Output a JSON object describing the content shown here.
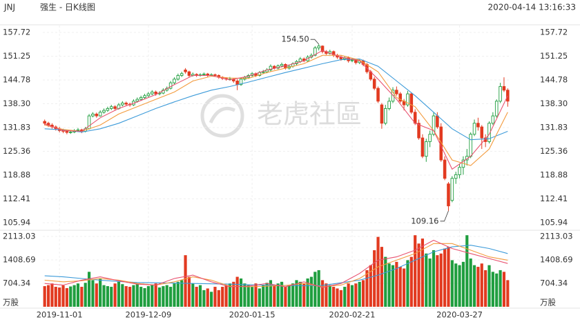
{
  "header": {
    "symbol": "JNJ",
    "title": "强生 - 日K线图",
    "timestamp": "2020-04-14 13:16:33"
  },
  "watermark": "老虎社區",
  "chart_data": {
    "type": "candlestick",
    "categories": [
      null,
      null,
      null,
      null,
      "2019-11-01",
      null,
      null,
      null,
      null,
      null,
      null,
      null,
      null,
      null,
      null,
      null,
      null,
      null,
      null,
      null,
      null,
      null,
      null,
      null,
      null,
      null,
      null,
      null,
      "2019-12-09",
      null,
      null,
      null,
      null,
      null,
      null,
      null,
      null,
      null,
      null,
      null,
      null,
      null,
      null,
      null,
      null,
      null,
      null,
      null,
      null,
      null,
      null,
      null,
      null,
      null,
      null,
      null,
      "2020-01-15",
      null,
      null,
      null,
      null,
      null,
      null,
      null,
      null,
      null,
      null,
      null,
      null,
      null,
      null,
      null,
      null,
      null,
      null,
      null,
      null,
      null,
      null,
      null,
      null,
      null,
      null,
      "2020-02-21",
      null,
      null,
      null,
      null,
      null,
      null,
      null,
      null,
      null,
      null,
      null,
      null,
      null,
      null,
      null,
      null,
      null,
      null,
      null,
      null,
      null,
      null,
      null,
      null,
      null,
      null,
      null,
      null,
      "2020-03-27",
      null,
      null,
      null,
      null,
      null,
      null,
      null,
      null,
      null,
      null,
      null,
      null,
      null
    ],
    "ohlc": [
      [
        133.5,
        134,
        132.4,
        133
      ],
      [
        133,
        133.4,
        132,
        132.5
      ],
      [
        132.5,
        133,
        131.5,
        132
      ],
      [
        132,
        132.4,
        131,
        131.5
      ],
      [
        131.5,
        132,
        130.5,
        131
      ],
      [
        131,
        131.5,
        130.3,
        130.8
      ],
      [
        130.8,
        131.2,
        130,
        130.5
      ],
      [
        130.5,
        131.1,
        130.1,
        130.6
      ],
      [
        130.6,
        131.4,
        130.3,
        131
      ],
      [
        131,
        131.7,
        130.6,
        131.2
      ],
      [
        131.2,
        131.5,
        130.3,
        130.8
      ],
      [
        130.8,
        132,
        130.5,
        131.5
      ],
      [
        131.5,
        135.5,
        131.3,
        135
      ],
      [
        135,
        136,
        134.6,
        135.5
      ],
      [
        135.5,
        135.9,
        134.5,
        135
      ],
      [
        135,
        136.5,
        134.8,
        136
      ],
      [
        136,
        137,
        135.6,
        136.5
      ],
      [
        136.5,
        137.5,
        136.1,
        137
      ],
      [
        137,
        138,
        136.6,
        137.5
      ],
      [
        137.5,
        137.9,
        136.5,
        137
      ],
      [
        137,
        138.5,
        136.7,
        138
      ],
      [
        138,
        139,
        137.6,
        138.5
      ],
      [
        138.5,
        138.9,
        137.8,
        138.2
      ],
      [
        138.2,
        138.6,
        137.5,
        138
      ],
      [
        138,
        139.5,
        137.7,
        139
      ],
      [
        139,
        140,
        138.6,
        139.5
      ],
      [
        139.5,
        140.5,
        139.1,
        140
      ],
      [
        140,
        141,
        139.6,
        140.5
      ],
      [
        140.5,
        141.5,
        140.1,
        141
      ],
      [
        141,
        142,
        140.6,
        141.5
      ],
      [
        141.5,
        141.9,
        140.5,
        141
      ],
      [
        141,
        141.7,
        140.6,
        141.2
      ],
      [
        141.2,
        142.5,
        140.9,
        142
      ],
      [
        142,
        143,
        141.6,
        142.5
      ],
      [
        142.5,
        144.5,
        142.2,
        144
      ],
      [
        144,
        145.5,
        143.6,
        145
      ],
      [
        145,
        146.5,
        144.6,
        146
      ],
      [
        146,
        147,
        145.6,
        146.5
      ],
      [
        147.5,
        148,
        146.5,
        147
      ],
      [
        147,
        147.3,
        145.5,
        146
      ],
      [
        146,
        146.8,
        145.7,
        146.3
      ],
      [
        146.3,
        146.6,
        145.6,
        146
      ],
      [
        146,
        146.6,
        145.7,
        146.2
      ],
      [
        146.2,
        146.8,
        145.9,
        146.4
      ],
      [
        146.4,
        146.7,
        145.6,
        146
      ],
      [
        146,
        146.6,
        145.7,
        146.2
      ],
      [
        146.2,
        146.5,
        145.6,
        146
      ],
      [
        146,
        146.3,
        145.1,
        145.5
      ],
      [
        145.5,
        145.8,
        144.8,
        145.2
      ],
      [
        145.2,
        145.5,
        144.6,
        145
      ],
      [
        145,
        145.6,
        144.6,
        145
      ],
      [
        145,
        145.3,
        144,
        144.5
      ],
      [
        144.5,
        145,
        142,
        143.5
      ],
      [
        143.5,
        145.4,
        143.2,
        145
      ],
      [
        145,
        145.9,
        144.6,
        145.5
      ],
      [
        145.5,
        146.4,
        145.1,
        146
      ],
      [
        146,
        146.9,
        145.6,
        146.5
      ],
      [
        146.5,
        146.8,
        145.6,
        146
      ],
      [
        146,
        147.2,
        145.7,
        146.8
      ],
      [
        146.8,
        147.5,
        146.4,
        147
      ],
      [
        147,
        148,
        146.6,
        147.5
      ],
      [
        147.5,
        149,
        147.1,
        148.5
      ],
      [
        148.5,
        148.8,
        147.6,
        148
      ],
      [
        148,
        149,
        147.7,
        148.6
      ],
      [
        148.6,
        149.5,
        148.2,
        149
      ],
      [
        149,
        149.3,
        147.6,
        148
      ],
      [
        148,
        148.9,
        147.6,
        148.5
      ],
      [
        148.5,
        149.6,
        148.1,
        149.2
      ],
      [
        149.2,
        150.2,
        148.8,
        149.8
      ],
      [
        149.8,
        151,
        149.4,
        150.5
      ],
      [
        150.5,
        150.9,
        149.6,
        150
      ],
      [
        150,
        151.5,
        149.7,
        151
      ],
      [
        151,
        152,
        150.6,
        151.5
      ],
      [
        151.5,
        154,
        151.2,
        153.5
      ],
      [
        153.5,
        154.5,
        152.8,
        154
      ],
      [
        154,
        154.2,
        152,
        152.5
      ],
      [
        152.5,
        152.9,
        151.6,
        152
      ],
      [
        152,
        153,
        151.7,
        152.5
      ],
      [
        152.5,
        152.8,
        151,
        151.5
      ],
      [
        151.5,
        151.9,
        150.5,
        151
      ],
      [
        151,
        151.4,
        150,
        150.5
      ],
      [
        150.5,
        151.3,
        150.1,
        150.8
      ],
      [
        150.8,
        151.2,
        149.5,
        150
      ],
      [
        150,
        150.8,
        149.6,
        150.2
      ],
      [
        150.2,
        150.6,
        149,
        149.5
      ],
      [
        149.5,
        150.5,
        149.1,
        150
      ],
      [
        150,
        150.3,
        148.5,
        149
      ],
      [
        149,
        149.4,
        146.5,
        147
      ],
      [
        147,
        147.5,
        144.5,
        145
      ],
      [
        145,
        145.6,
        142,
        142.5
      ],
      [
        142.5,
        143,
        138.5,
        139
      ],
      [
        138,
        138.5,
        131.5,
        133
      ],
      [
        133,
        138,
        132.5,
        137
      ],
      [
        137,
        140,
        136.5,
        139
      ],
      [
        139,
        142.8,
        138.5,
        142
      ],
      [
        142,
        143,
        140.5,
        141
      ],
      [
        141,
        141.5,
        138.5,
        139
      ],
      [
        139,
        139.6,
        136.5,
        138
      ],
      [
        138,
        141.8,
        137.5,
        141
      ],
      [
        141,
        141.3,
        135.5,
        136
      ],
      [
        136,
        136.8,
        132.5,
        133
      ],
      [
        133,
        134,
        128.5,
        129
      ],
      [
        129,
        130,
        123.5,
        124
      ],
      [
        124,
        128.8,
        122.5,
        128
      ],
      [
        128,
        131,
        126.5,
        130
      ],
      [
        130,
        136,
        129.5,
        135
      ],
      [
        135,
        136,
        131.5,
        132
      ],
      [
        132,
        133,
        122.5,
        123
      ],
      [
        123,
        124,
        117.5,
        118
      ],
      [
        116.5,
        117,
        109.16,
        110.5
      ],
      [
        112,
        118.6,
        111.5,
        118
      ],
      [
        118,
        119.8,
        116.5,
        119
      ],
      [
        119,
        122,
        118,
        121
      ],
      [
        121,
        124,
        119,
        123
      ],
      [
        123,
        126,
        121.5,
        124
      ],
      [
        124,
        130.5,
        123.5,
        130
      ],
      [
        130,
        134,
        129.5,
        133
      ],
      [
        133,
        134.5,
        131,
        132
      ],
      [
        132,
        132.5,
        126,
        129
      ],
      [
        129,
        130,
        126.5,
        128
      ],
      [
        128,
        133.5,
        127.5,
        133
      ],
      [
        133,
        136,
        132.5,
        135
      ],
      [
        135,
        139.5,
        134.5,
        139
      ],
      [
        139,
        144,
        138.5,
        143
      ],
      [
        143,
        145.5,
        141.5,
        142
      ],
      [
        142,
        142.5,
        137.5,
        139
      ]
    ],
    "volume": [
      620,
      650,
      700,
      600,
      580,
      640,
      560,
      610,
      650,
      700,
      600,
      720,
      1050,
      800,
      700,
      850,
      650,
      620,
      600,
      700,
      750,
      680,
      620,
      600,
      650,
      700,
      600,
      560,
      620,
      650,
      700,
      580,
      620,
      650,
      600,
      700,
      750,
      800,
      1550,
      900,
      700,
      600,
      650,
      500,
      550,
      450,
      600,
      500,
      600,
      650,
      700,
      750,
      900,
      850,
      700,
      650,
      600,
      700,
      550,
      650,
      720,
      800,
      650,
      700,
      750,
      600,
      650,
      700,
      800,
      750,
      700,
      850,
      900,
      1050,
      1100,
      800,
      700,
      650,
      600,
      550,
      500,
      600,
      700,
      650,
      700,
      750,
      800,
      1100,
      1250,
      1700,
      2100,
      1800,
      1500,
      1300,
      1250,
      1350,
      1200,
      1150,
      1400,
      1500,
      2150,
      1900,
      2050,
      1600,
      1450,
      1700,
      1550,
      1600,
      1750,
      1800,
      1400,
      1300,
      1250,
      1350,
      2150,
      1450,
      1250,
      1200,
      1300,
      1100,
      1250,
      1050,
      1000,
      1100,
      1050,
      800
    ],
    "up_color": "#1f9e3f",
    "down_color": "#e23a20",
    "ma_lines": [
      {
        "color": "#3b9ad9",
        "x": [
          0,
          5,
          10,
          15,
          20,
          25,
          30,
          35,
          40,
          45,
          50,
          55,
          60,
          65,
          70,
          75,
          80,
          85,
          90,
          95,
          100,
          105,
          110,
          115,
          120,
          125
        ],
        "values": [
          131.5,
          131.2,
          130.6,
          131.5,
          133,
          135,
          137,
          138.8,
          140.5,
          142,
          143,
          144.2,
          145.5,
          146.8,
          148,
          149.2,
          150.3,
          150.5,
          148.5,
          144.5,
          140.5,
          136,
          131.5,
          128.5,
          128.8,
          130.8
        ]
      },
      {
        "color": "#f39a3c",
        "x": [
          0,
          5,
          10,
          15,
          20,
          25,
          30,
          35,
          40,
          45,
          50,
          55,
          60,
          65,
          70,
          75,
          80,
          85,
          90,
          95,
          100,
          105,
          110,
          115,
          120,
          125
        ],
        "values": [
          132.5,
          131.3,
          130.8,
          132.5,
          135.5,
          137.5,
          139.5,
          141.5,
          144.5,
          145.8,
          145.3,
          145.2,
          146.8,
          148,
          149.2,
          151.5,
          151.5,
          150.2,
          147,
          140,
          137.5,
          131,
          123,
          121.5,
          126,
          136
        ]
      },
      {
        "color": "#e8506e",
        "x": [
          0,
          5,
          10,
          15,
          20,
          25,
          30,
          35,
          40,
          45,
          50,
          55,
          60,
          65,
          70,
          75,
          80,
          85,
          90,
          95,
          100,
          105,
          110,
          115,
          120,
          125
        ],
        "values": [
          132.8,
          131,
          130.8,
          134.5,
          137,
          138.8,
          140.8,
          143.5,
          146,
          146,
          144.8,
          145.8,
          147.5,
          148.6,
          150,
          152.8,
          151,
          150,
          145,
          139.5,
          133,
          131,
          120.5,
          124,
          130,
          140.5
        ]
      }
    ],
    "volume_ma_lines": [
      {
        "color": "#3b9ad9",
        "x": [
          0,
          5,
          10,
          15,
          20,
          25,
          30,
          35,
          40,
          45,
          50,
          55,
          60,
          65,
          70,
          75,
          80,
          85,
          90,
          95,
          100,
          105,
          110,
          115,
          120,
          125
        ],
        "values": [
          930,
          900,
          850,
          800,
          760,
          730,
          720,
          710,
          700,
          690,
          680,
          660,
          650,
          640,
          630,
          640,
          720,
          800,
          950,
          1150,
          1400,
          1650,
          1800,
          1850,
          1750,
          1600
        ]
      },
      {
        "color": "#f39a3c",
        "x": [
          0,
          5,
          10,
          15,
          20,
          25,
          30,
          35,
          40,
          45,
          50,
          55,
          60,
          65,
          70,
          75,
          80,
          85,
          90,
          95,
          100,
          105,
          110,
          115,
          120,
          125
        ],
        "values": [
          800,
          750,
          780,
          850,
          800,
          700,
          650,
          750,
          900,
          800,
          620,
          600,
          620,
          640,
          700,
          600,
          650,
          850,
          1200,
          1400,
          1600,
          1900,
          1900,
          1700,
          1500,
          1400
        ]
      },
      {
        "color": "#e8506e",
        "x": [
          0,
          5,
          10,
          15,
          20,
          25,
          30,
          35,
          40,
          45,
          50,
          55,
          60,
          65,
          70,
          75,
          80,
          85,
          90,
          95,
          100,
          105,
          110,
          115,
          120,
          125
        ],
        "values": [
          700,
          650,
          800,
          900,
          780,
          680,
          650,
          850,
          950,
          750,
          600,
          620,
          700,
          600,
          750,
          580,
          700,
          1000,
          1400,
          1500,
          1700,
          2000,
          1750,
          1600,
          1450,
          1300
        ]
      }
    ],
    "ylim": [
      105.94,
      157.72
    ],
    "yticks": [
      105.94,
      112.41,
      118.88,
      125.36,
      131.83,
      {
        "value": 138.3,
        "label": "138.30"
      },
      144.78,
      151.25,
      157.72
    ],
    "volume_ylim": [
      0,
      2113.03
    ],
    "volume_yticks": [
      704.34,
      1408.69,
      2113.03
    ],
    "volume_unit": "万股",
    "annotations": [
      {
        "label": "154.50",
        "value": 154.5,
        "of": "high"
      },
      {
        "label": "109.16",
        "value": 109.16,
        "of": "low"
      }
    ],
    "grid": true
  }
}
